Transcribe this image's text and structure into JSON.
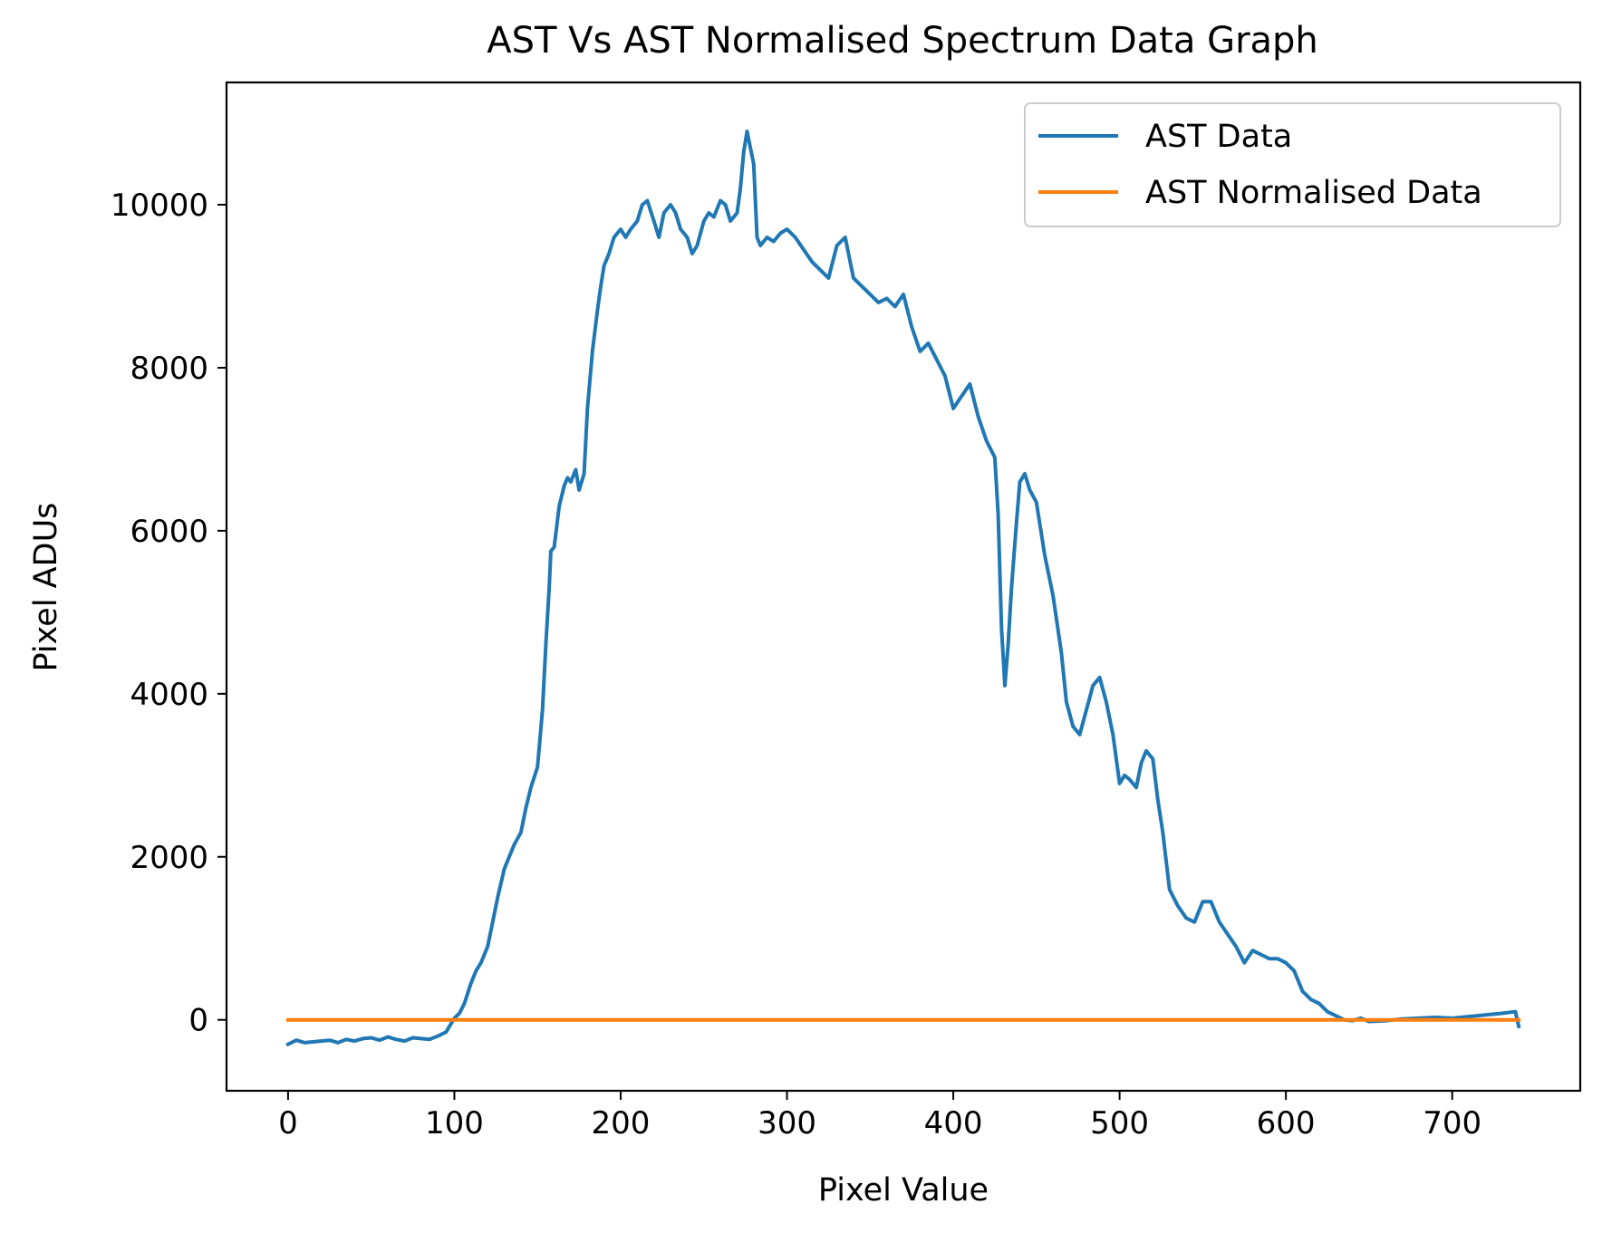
{
  "chart_data": {
    "type": "line",
    "title": "AST Vs AST  Normalised Spectrum Data Graph",
    "xlabel": "Pixel Value",
    "ylabel": "Pixel ADUs",
    "xlim": [
      -37,
      777
    ],
    "ylim": [
      -870,
      11500
    ],
    "xticks": [
      0,
      100,
      200,
      300,
      400,
      500,
      600,
      700
    ],
    "xtick_labels": [
      "0",
      "100",
      "200",
      "300",
      "400",
      "500",
      "600",
      "700"
    ],
    "yticks": [
      0,
      2000,
      4000,
      6000,
      8000,
      10000
    ],
    "ytick_labels": [
      "0",
      "2000",
      "4000",
      "6000",
      "8000",
      "10000"
    ],
    "grid": false,
    "legend_position": "top-right",
    "series": [
      {
        "name": "AST Data",
        "color": "#1f77b4",
        "x": [
          0,
          5,
          10,
          15,
          20,
          25,
          30,
          35,
          40,
          45,
          50,
          55,
          60,
          65,
          70,
          75,
          80,
          85,
          90,
          95,
          100,
          103,
          106,
          110,
          113,
          116,
          120,
          123,
          126,
          130,
          133,
          136,
          140,
          143,
          146,
          150,
          153,
          155,
          157,
          158,
          160,
          163,
          166,
          168,
          170,
          173,
          175,
          178,
          180,
          183,
          186,
          188,
          190,
          193,
          196,
          198,
          200,
          203,
          206,
          210,
          213,
          216,
          220,
          223,
          226,
          230,
          233,
          236,
          240,
          243,
          246,
          250,
          253,
          256,
          260,
          263,
          266,
          270,
          272,
          274,
          276,
          278,
          280,
          282,
          284,
          288,
          292,
          296,
          300,
          305,
          310,
          315,
          320,
          325,
          330,
          335,
          340,
          345,
          350,
          355,
          360,
          365,
          370,
          375,
          380,
          385,
          390,
          395,
          400,
          405,
          410,
          415,
          420,
          425,
          427,
          429,
          431,
          433,
          435,
          438,
          440,
          443,
          446,
          450,
          455,
          460,
          465,
          468,
          472,
          476,
          480,
          484,
          488,
          492,
          496,
          500,
          503,
          506,
          510,
          513,
          516,
          520,
          523,
          526,
          530,
          535,
          540,
          545,
          550,
          555,
          560,
          565,
          570,
          575,
          580,
          585,
          590,
          595,
          600,
          605,
          610,
          615,
          620,
          625,
          630,
          635,
          640,
          645,
          650,
          660,
          670,
          680,
          690,
          700,
          710,
          720,
          730,
          738,
          740
        ],
        "values": [
          -300,
          -250,
          -280,
          -270,
          -260,
          -250,
          -280,
          -240,
          -260,
          -230,
          -220,
          -250,
          -210,
          -240,
          -260,
          -220,
          -230,
          -240,
          -200,
          -150,
          20,
          80,
          200,
          450,
          600,
          700,
          900,
          1200,
          1500,
          1850,
          2000,
          2150,
          2300,
          2600,
          2850,
          3100,
          3800,
          4600,
          5300,
          5750,
          5800,
          6300,
          6550,
          6650,
          6600,
          6750,
          6500,
          6700,
          7500,
          8200,
          8700,
          9000,
          9250,
          9400,
          9600,
          9650,
          9700,
          9600,
          9700,
          9800,
          10000,
          10050,
          9800,
          9600,
          9900,
          10000,
          9900,
          9700,
          9600,
          9400,
          9500,
          9800,
          9900,
          9850,
          10050,
          10000,
          9800,
          9900,
          10200,
          10650,
          10900,
          10700,
          10500,
          9600,
          9500,
          9600,
          9550,
          9650,
          9700,
          9600,
          9450,
          9300,
          9200,
          9100,
          9500,
          9600,
          9100,
          9000,
          8900,
          8800,
          8850,
          8750,
          8900,
          8500,
          8200,
          8300,
          8100,
          7900,
          7500,
          7650,
          7800,
          7400,
          7100,
          6900,
          6200,
          4800,
          4100,
          4600,
          5300,
          6100,
          6600,
          6700,
          6500,
          6350,
          5700,
          5200,
          4500,
          3900,
          3600,
          3500,
          3800,
          4100,
          4200,
          3900,
          3500,
          2900,
          3000,
          2950,
          2850,
          3150,
          3300,
          3200,
          2700,
          2300,
          1600,
          1400,
          1250,
          1200,
          1450,
          1450,
          1200,
          1050,
          900,
          700,
          850,
          800,
          750,
          750,
          700,
          600,
          350,
          250,
          200,
          100,
          50,
          0,
          -10,
          20,
          -20,
          -10,
          10,
          20,
          30,
          20,
          40,
          60,
          80,
          100,
          -80
        ]
      },
      {
        "name": "AST Normalised Data",
        "color": "#ff7f0e",
        "x": [
          0,
          740
        ],
        "values": [
          0,
          0
        ]
      }
    ]
  }
}
